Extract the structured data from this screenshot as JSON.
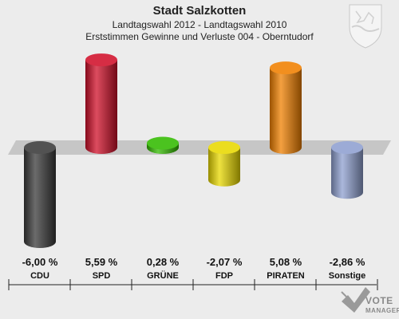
{
  "header": {
    "title": "Stadt Salzkotten",
    "subtitle1": "Landtagswahl 2012 - Landtagswahl 2010",
    "subtitle2": "Erststimmen Gewinne und Verluste 004 - Oberntudorf"
  },
  "logo": {
    "line1": "VOTE",
    "line2": "MANAGER"
  },
  "chart_data": {
    "type": "bar",
    "categories": [
      "CDU",
      "SPD",
      "GRÜNE",
      "FDP",
      "PIRATEN",
      "Sonstige"
    ],
    "values": [
      -6.0,
      5.59,
      0.28,
      -2.07,
      5.08,
      -2.86
    ],
    "value_labels": [
      "-6,00 %",
      "5,59 %",
      "0,28 %",
      "-2,07 %",
      "5,08 %",
      "-2,86 %"
    ],
    "colors": [
      "#3a3a3a",
      "#d0102a",
      "#33bb00",
      "#e8d800",
      "#f08000",
      "#8fa0d0"
    ],
    "unit": "%",
    "ylim": [
      -6.2,
      6.2
    ]
  }
}
